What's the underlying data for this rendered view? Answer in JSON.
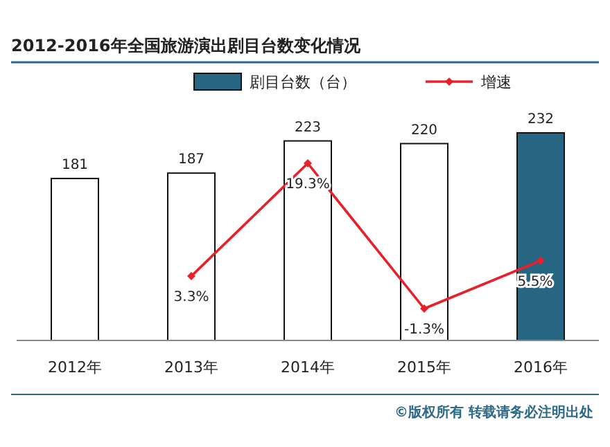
{
  "chart_data": {
    "type": "bar",
    "title": "2012-2016年全国旅游演出剧目台数变化情况",
    "categories": [
      "2012年",
      "2013年",
      "2014年",
      "2015年",
      "2016年"
    ],
    "series": [
      {
        "name": "剧目台数（台）",
        "colors": [
          "#ffffff",
          "#ffffff",
          "#ffffff",
          "#ffffff",
          "#266682"
        ],
        "values": [
          181,
          187,
          223,
          220,
          232
        ],
        "value_labels": [
          "181",
          "187",
          "223",
          "220",
          "232"
        ]
      },
      {
        "name": "增速",
        "type": "line",
        "axis": "y2",
        "color": "#e8202a",
        "marker": "diamond",
        "values": [
          null,
          3.3,
          19.3,
          -1.3,
          5.5
        ],
        "value_labels": [
          null,
          "3.3%",
          "19.3%",
          "-1.3%",
          "5.5%"
        ]
      }
    ],
    "legend": "top",
    "annotations": [
      "©版权所有  转载请务必注明出处"
    ]
  }
}
